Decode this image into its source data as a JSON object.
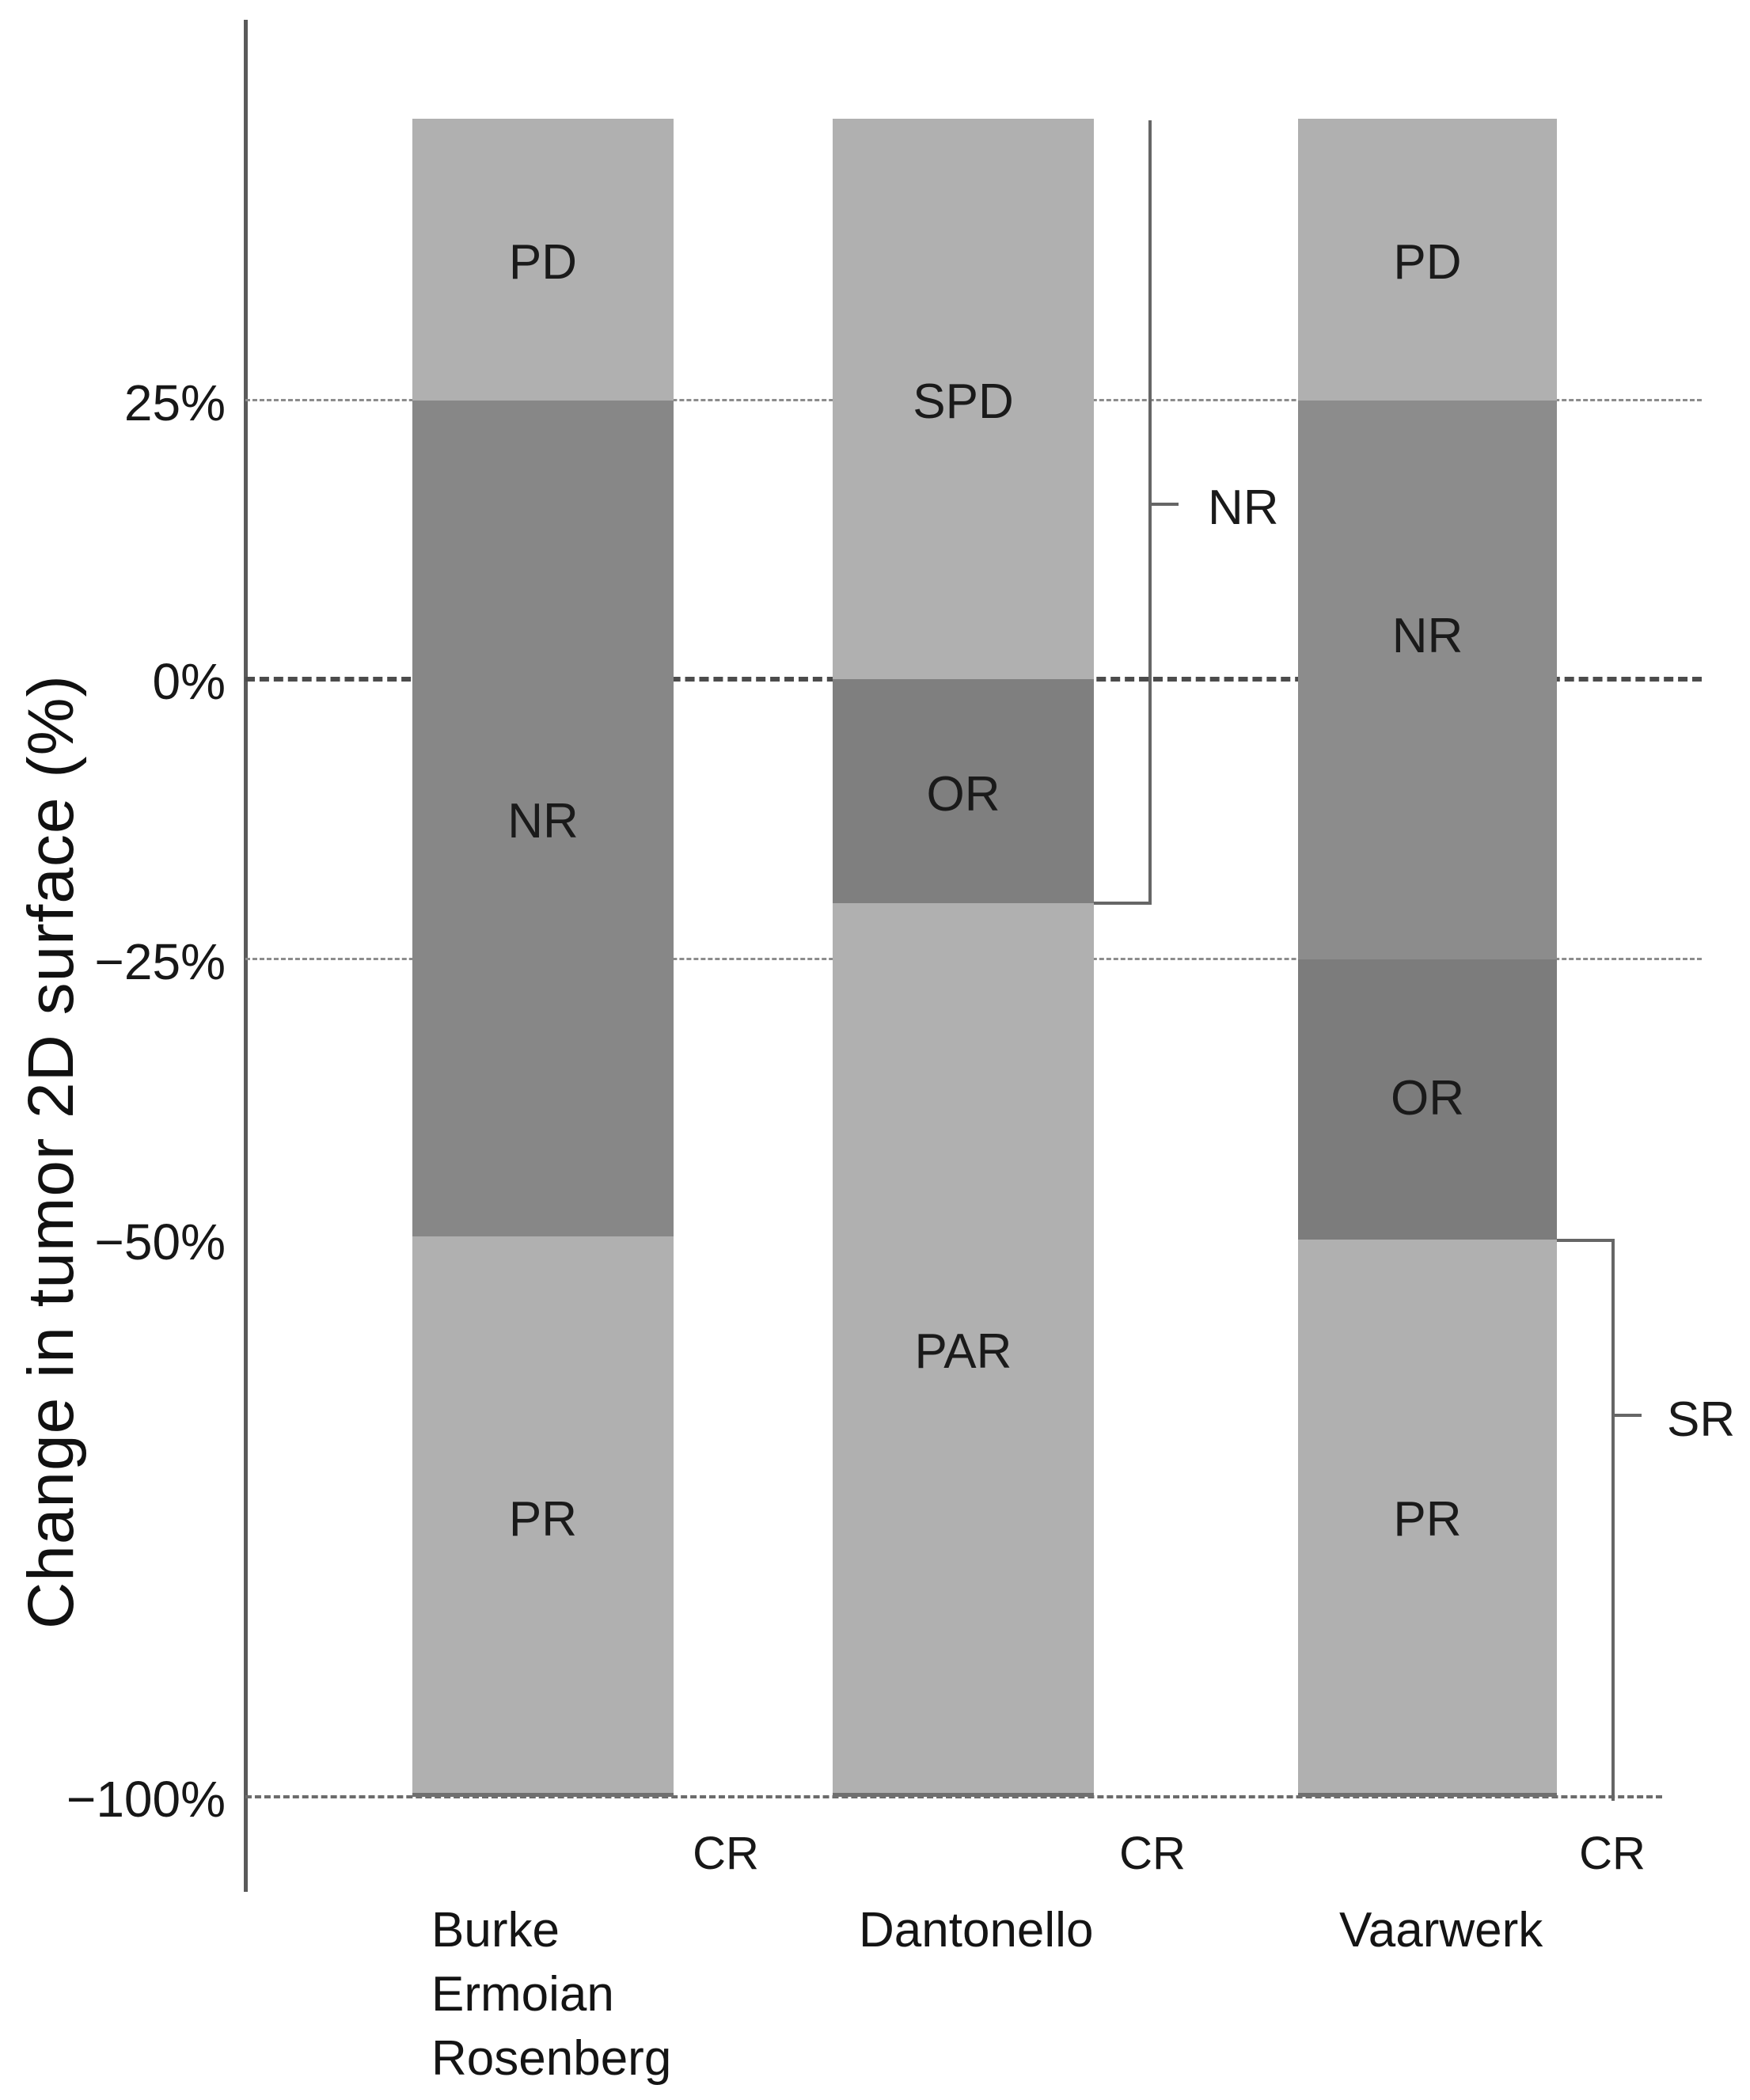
{
  "chart_data": {
    "type": "bar",
    "variant": "stacked-range-columns",
    "title": "",
    "ylabel": "Change in tumor 2D surface (%)",
    "xlabel": "",
    "ylim": [
      -100,
      50
    ],
    "grid": "dashed horizontal at 25, 0, -25, -100",
    "yticks": [
      {
        "label": "25%",
        "value": 25
      },
      {
        "label": "0%",
        "value": 0
      },
      {
        "label": "−25%",
        "value": -25
      },
      {
        "label": "−50%",
        "value": -50
      },
      {
        "label": "−100%",
        "value": -100
      }
    ],
    "columns": [
      {
        "name": "Burke Ermoian Rosenberg",
        "label_lines": [
          "Burke",
          "Ermoian",
          "Rosenberg"
        ],
        "below_label": "CR",
        "segments": [
          {
            "code": "PD",
            "from": 50,
            "to": 25,
            "shade": "light"
          },
          {
            "code": "NR",
            "from": 25,
            "to": -50,
            "shade": "dark"
          },
          {
            "code": "PR",
            "from": -50,
            "to": -100,
            "shade": "light"
          }
        ]
      },
      {
        "name": "Dantonello",
        "label_lines": [
          "Dantonello"
        ],
        "below_label": "CR",
        "segments": [
          {
            "code": "SPD",
            "from": 50,
            "to": 0,
            "shade": "light"
          },
          {
            "code": "OR",
            "from": 0,
            "to": -20,
            "shade": "dark"
          },
          {
            "code": "PAR",
            "from": -20,
            "to": -100,
            "shade": "light"
          }
        ],
        "bracket": {
          "label": "NR",
          "from": 50,
          "to": -20,
          "side": "right"
        }
      },
      {
        "name": "Vaarwerk",
        "label_lines": [
          "Vaarwerk"
        ],
        "below_label": "CR",
        "segments": [
          {
            "code": "PD",
            "from": 50,
            "to": 25,
            "shade": "light"
          },
          {
            "code": "NR",
            "from": 25,
            "to": -25,
            "shade": "dark"
          },
          {
            "code": "OR",
            "from": -25,
            "to": -50,
            "shade": "darker"
          },
          {
            "code": "PR",
            "from": -50,
            "to": -100,
            "shade": "light"
          }
        ],
        "bracket": {
          "label": "SR",
          "from": -50,
          "to": -100,
          "side": "right"
        }
      }
    ],
    "colors": {
      "segment_light": "#b0b0b0",
      "segment_dark": "#878787",
      "segment_darker": "#7c7c7c",
      "axis_line": "#5a5a5a",
      "gridline_major": "#4c4c4c",
      "gridline_minor": "#8c8c8c",
      "bracket_line": "#666666",
      "text": "#1a1a1a",
      "background": "#ffffff"
    },
    "legend": "none"
  }
}
